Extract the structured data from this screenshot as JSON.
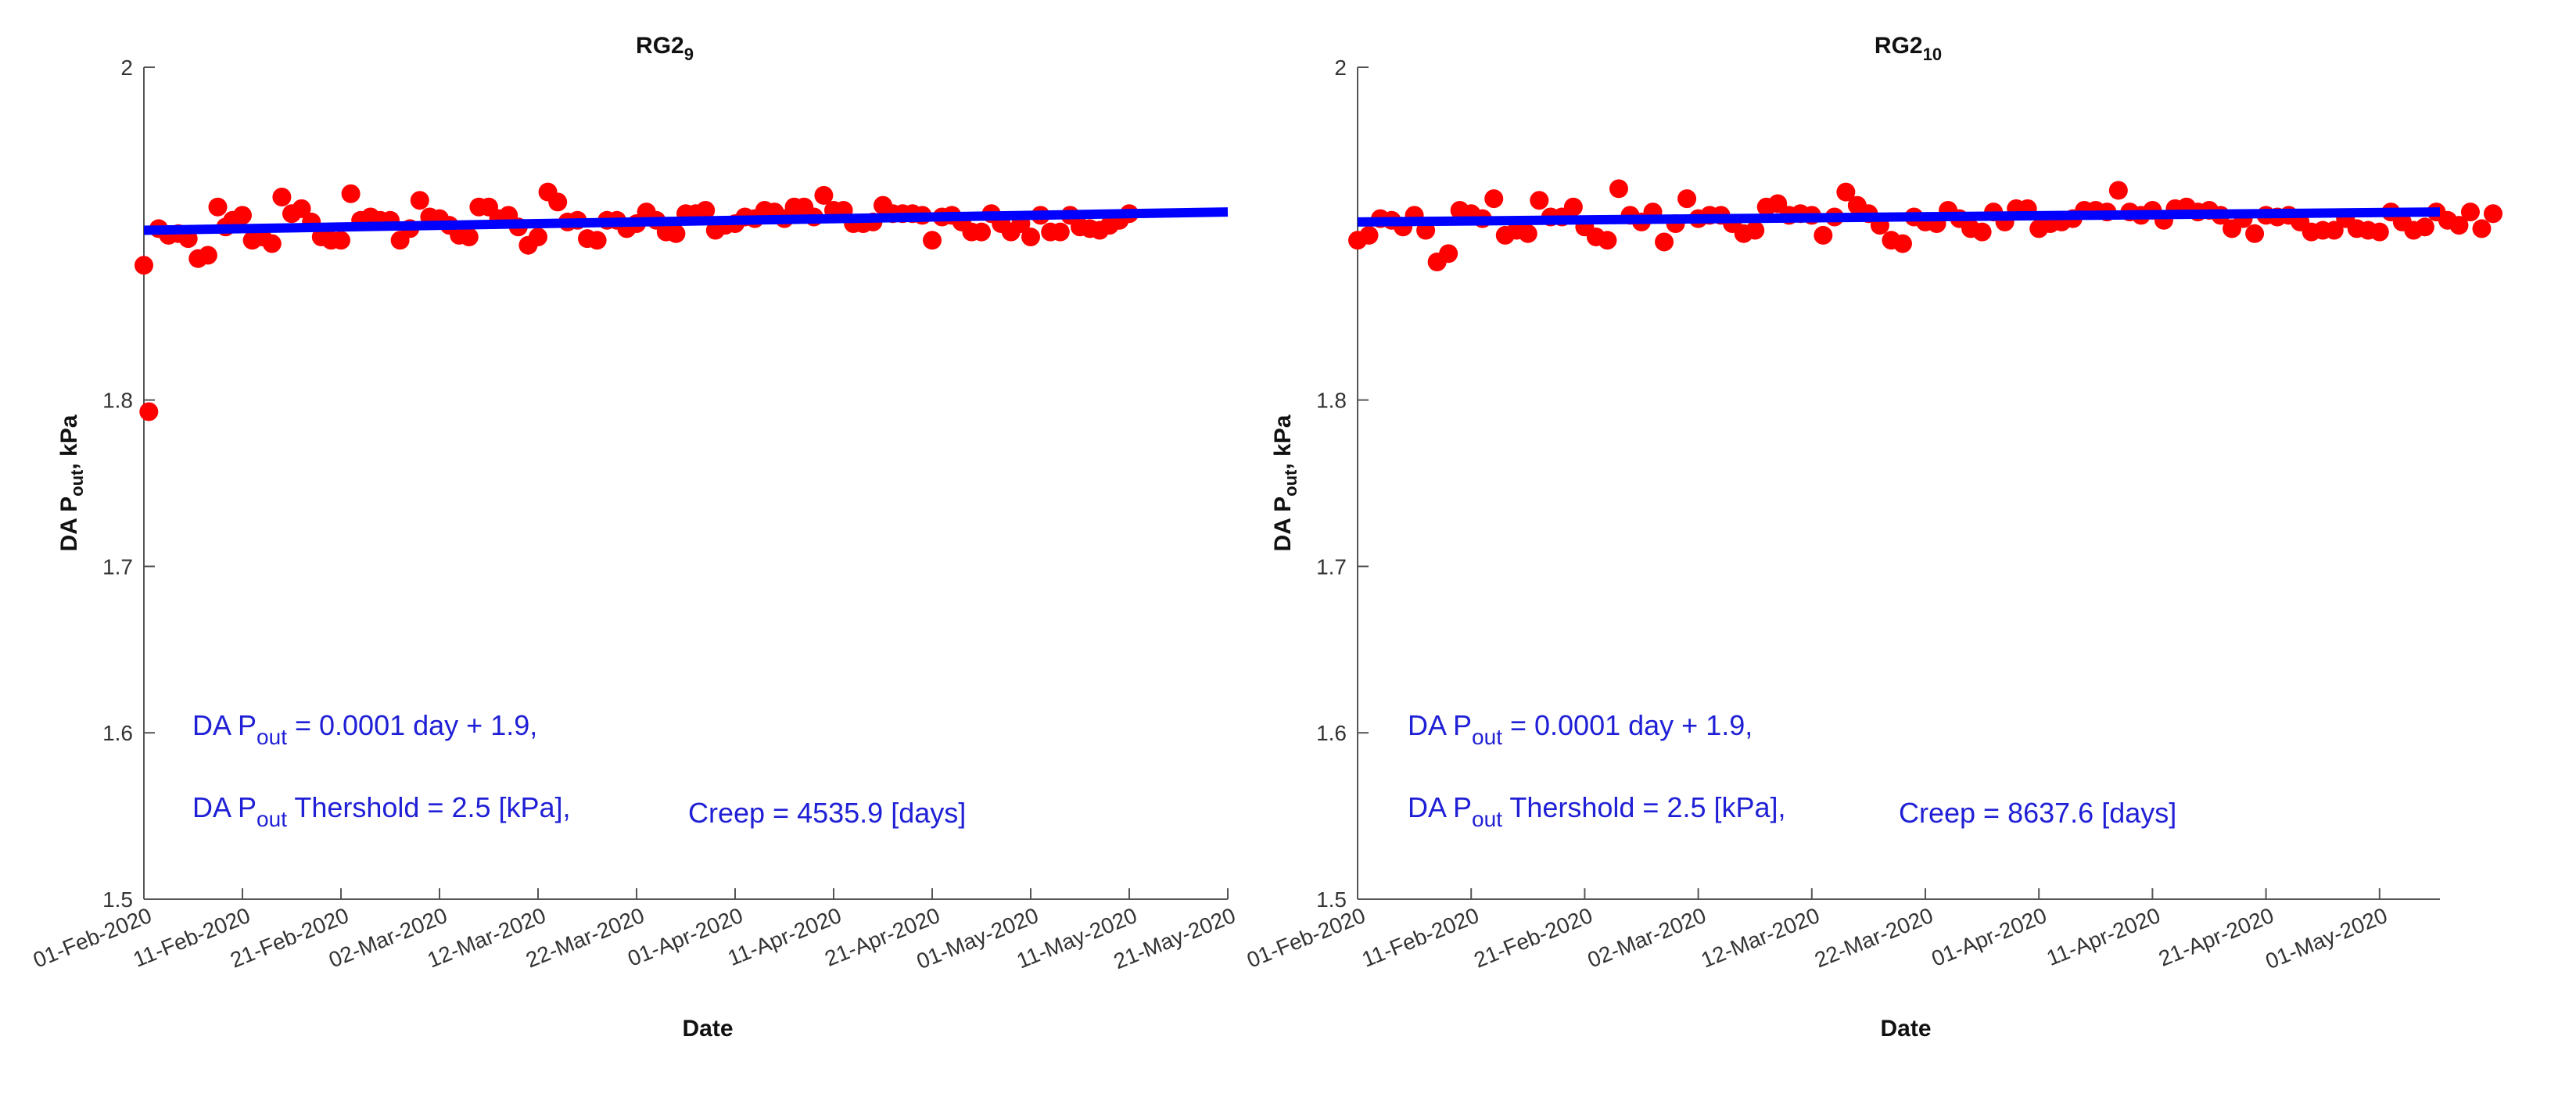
{
  "colors": {
    "points": "#ff0000",
    "fit_line": "#0000ff",
    "annotation": "#1f1fd6",
    "axes": "#555555"
  },
  "chart_data": [
    {
      "type": "scatter",
      "title": "RG2",
      "title_subscript": "9",
      "xlabel": "Date",
      "ylabel": "DA P",
      "ylabel_subscript": "out",
      "ylabel_suffix": ", kPa",
      "ylim": [
        1.5,
        2.0
      ],
      "y_ticks": [
        "1.5",
        "1.6",
        "1.7",
        "1.8",
        "2"
      ],
      "xlim_days": [
        0,
        110
      ],
      "x_ticks": [
        {
          "day": 0,
          "label": "01-Feb-2020"
        },
        {
          "day": 10,
          "label": "11-Feb-2020"
        },
        {
          "day": 20,
          "label": "21-Feb-2020"
        },
        {
          "day": 30,
          "label": "02-Mar-2020"
        },
        {
          "day": 40,
          "label": "12-Mar-2020"
        },
        {
          "day": 50,
          "label": "22-Mar-2020"
        },
        {
          "day": 60,
          "label": "01-Apr-2020"
        },
        {
          "day": 70,
          "label": "11-Apr-2020"
        },
        {
          "day": 80,
          "label": "21-Apr-2020"
        },
        {
          "day": 90,
          "label": "01-May-2020"
        },
        {
          "day": 100,
          "label": "11-May-2020"
        },
        {
          "day": 110,
          "label": "21-May-2020"
        }
      ],
      "fit": {
        "slope": 0.0001,
        "intercept": 1.9,
        "y_start": 1.902,
        "y_end": 1.913
      },
      "annotations": {
        "eq1_prefix": "DA P",
        "eq1_sub": "out",
        "eq1_rest": " = 0.0001 day + 1.9,",
        "eq2_prefix": "DA P",
        "eq2_sub": "out",
        "eq2_rest": " Thershold = 2.5 [kPa],",
        "creep": "Creep = 4535.9 [days]"
      },
      "points": [
        [
          0,
          1.881
        ],
        [
          0.5,
          1.793
        ],
        [
          1.5,
          1.903
        ],
        [
          2.5,
          1.899
        ],
        [
          3.5,
          1.9
        ],
        [
          4.5,
          1.897
        ],
        [
          5.5,
          1.885
        ],
        [
          6.5,
          1.887
        ],
        [
          7.5,
          1.916
        ],
        [
          8.3,
          1.904
        ],
        [
          9,
          1.908
        ],
        [
          10,
          1.911
        ],
        [
          11,
          1.896
        ],
        [
          12,
          1.898
        ],
        [
          13,
          1.894
        ],
        [
          14,
          1.922
        ],
        [
          15,
          1.912
        ],
        [
          16,
          1.915
        ],
        [
          17,
          1.907
        ],
        [
          18,
          1.898
        ],
        [
          19,
          1.896
        ],
        [
          20,
          1.896
        ],
        [
          21,
          1.924
        ],
        [
          22,
          1.908
        ],
        [
          23,
          1.91
        ],
        [
          24,
          1.908
        ],
        [
          25,
          1.908
        ],
        [
          26,
          1.896
        ],
        [
          27,
          1.903
        ],
        [
          28,
          1.92
        ],
        [
          29,
          1.91
        ],
        [
          30,
          1.909
        ],
        [
          31,
          1.905
        ],
        [
          32,
          1.899
        ],
        [
          33,
          1.898
        ],
        [
          34,
          1.916
        ],
        [
          35,
          1.916
        ],
        [
          36,
          1.909
        ],
        [
          37,
          1.911
        ],
        [
          38,
          1.904
        ],
        [
          39,
          1.893
        ],
        [
          40,
          1.898
        ],
        [
          41,
          1.925
        ],
        [
          42,
          1.919
        ],
        [
          43,
          1.907
        ],
        [
          44,
          1.908
        ],
        [
          45,
          1.897
        ],
        [
          46,
          1.896
        ],
        [
          47,
          1.908
        ],
        [
          48,
          1.908
        ],
        [
          49,
          1.903
        ],
        [
          50,
          1.906
        ],
        [
          51,
          1.913
        ],
        [
          52,
          1.908
        ],
        [
          53,
          1.901
        ],
        [
          54,
          1.9
        ],
        [
          55,
          1.912
        ],
        [
          56,
          1.912
        ],
        [
          57,
          1.914
        ],
        [
          58,
          1.902
        ],
        [
          59,
          1.905
        ],
        [
          60,
          1.906
        ],
        [
          61,
          1.91
        ],
        [
          62,
          1.909
        ],
        [
          63,
          1.914
        ],
        [
          64,
          1.913
        ],
        [
          65,
          1.909
        ],
        [
          66,
          1.916
        ],
        [
          67,
          1.916
        ],
        [
          68,
          1.91
        ],
        [
          69,
          1.923
        ],
        [
          70,
          1.914
        ],
        [
          71,
          1.914
        ],
        [
          72,
          1.906
        ],
        [
          73,
          1.906
        ],
        [
          74,
          1.907
        ],
        [
          75,
          1.917
        ],
        [
          76,
          1.912
        ],
        [
          77,
          1.912
        ],
        [
          78,
          1.912
        ],
        [
          79,
          1.911
        ],
        [
          80,
          1.896
        ],
        [
          81,
          1.91
        ],
        [
          82,
          1.911
        ],
        [
          83,
          1.907
        ],
        [
          84,
          1.901
        ],
        [
          85,
          1.901
        ],
        [
          86,
          1.912
        ],
        [
          87,
          1.906
        ],
        [
          88,
          1.901
        ],
        [
          89,
          1.906
        ],
        [
          90,
          1.898
        ],
        [
          91,
          1.911
        ],
        [
          92,
          1.901
        ],
        [
          93,
          1.901
        ],
        [
          94,
          1.911
        ],
        [
          95,
          1.904
        ],
        [
          96,
          1.903
        ],
        [
          97,
          1.902
        ],
        [
          98,
          1.905
        ],
        [
          99,
          1.908
        ],
        [
          100,
          1.912
        ]
      ]
    },
    {
      "type": "scatter",
      "title": "RG2",
      "title_subscript": "10",
      "xlabel": "Date",
      "ylabel": "DA P",
      "ylabel_subscript": "out",
      "ylabel_suffix": ", kPa",
      "ylim": [
        1.5,
        2.0
      ],
      "y_ticks": [
        "1.5",
        "1.6",
        "1.7",
        "1.8",
        "2"
      ],
      "xlim_days": [
        0,
        100
      ],
      "x_ticks": [
        {
          "day": 0,
          "label": "01-Feb-2020"
        },
        {
          "day": 10,
          "label": "11-Feb-2020"
        },
        {
          "day": 20,
          "label": "21-Feb-2020"
        },
        {
          "day": 30,
          "label": "02-Mar-2020"
        },
        {
          "day": 40,
          "label": "12-Mar-2020"
        },
        {
          "day": 50,
          "label": "22-Mar-2020"
        },
        {
          "day": 60,
          "label": "01-Apr-2020"
        },
        {
          "day": 70,
          "label": "11-Apr-2020"
        },
        {
          "day": 80,
          "label": "21-Apr-2020"
        },
        {
          "day": 90,
          "label": "01-May-2020"
        }
      ],
      "fit": {
        "slope": 0.0001,
        "intercept": 1.9,
        "y_start": 1.907,
        "y_end": 1.913
      },
      "annotations": {
        "eq1_prefix": "DA P",
        "eq1_sub": "out",
        "eq1_rest": " = 0.0001 day + 1.9,",
        "eq2_prefix": "DA P",
        "eq2_sub": "out",
        "eq2_rest": " Thershold = 2.5 [kPa],",
        "creep": "Creep = 8637.6 [days]"
      },
      "points": [
        [
          0,
          1.896
        ],
        [
          1,
          1.899
        ],
        [
          2,
          1.909
        ],
        [
          3,
          1.908
        ],
        [
          4,
          1.904
        ],
        [
          5,
          1.911
        ],
        [
          6,
          1.902
        ],
        [
          7,
          1.883
        ],
        [
          8,
          1.888
        ],
        [
          9,
          1.914
        ],
        [
          10,
          1.912
        ],
        [
          11,
          1.909
        ],
        [
          12,
          1.921
        ],
        [
          13,
          1.899
        ],
        [
          14,
          1.902
        ],
        [
          15,
          1.9
        ],
        [
          16,
          1.92
        ],
        [
          17,
          1.91
        ],
        [
          18,
          1.91
        ],
        [
          19,
          1.916
        ],
        [
          20,
          1.904
        ],
        [
          21,
          1.898
        ],
        [
          22,
          1.896
        ],
        [
          23,
          1.927
        ],
        [
          24,
          1.911
        ],
        [
          25,
          1.907
        ],
        [
          26,
          1.913
        ],
        [
          27,
          1.895
        ],
        [
          28,
          1.906
        ],
        [
          29,
          1.921
        ],
        [
          30,
          1.909
        ],
        [
          31,
          1.911
        ],
        [
          32,
          1.911
        ],
        [
          33,
          1.906
        ],
        [
          34,
          1.9
        ],
        [
          35,
          1.902
        ],
        [
          36,
          1.916
        ],
        [
          37,
          1.918
        ],
        [
          38,
          1.911
        ],
        [
          39,
          1.912
        ],
        [
          40,
          1.911
        ],
        [
          41,
          1.899
        ],
        [
          42,
          1.91
        ],
        [
          43,
          1.925
        ],
        [
          44,
          1.917
        ],
        [
          45,
          1.912
        ],
        [
          46,
          1.905
        ],
        [
          47,
          1.896
        ],
        [
          48,
          1.894
        ],
        [
          49,
          1.91
        ],
        [
          50,
          1.907
        ],
        [
          51,
          1.906
        ],
        [
          52,
          1.914
        ],
        [
          53,
          1.909
        ],
        [
          54,
          1.903
        ],
        [
          55,
          1.901
        ],
        [
          56,
          1.913
        ],
        [
          57,
          1.907
        ],
        [
          58,
          1.915
        ],
        [
          59,
          1.915
        ],
        [
          60,
          1.903
        ],
        [
          61,
          1.906
        ],
        [
          62,
          1.907
        ],
        [
          63,
          1.909
        ],
        [
          64,
          1.914
        ],
        [
          65,
          1.914
        ],
        [
          66,
          1.913
        ],
        [
          67,
          1.926
        ],
        [
          68,
          1.913
        ],
        [
          69,
          1.911
        ],
        [
          70,
          1.914
        ],
        [
          71,
          1.908
        ],
        [
          72,
          1.915
        ],
        [
          73,
          1.916
        ],
        [
          74,
          1.913
        ],
        [
          75,
          1.914
        ],
        [
          76,
          1.911
        ],
        [
          77,
          1.903
        ],
        [
          78,
          1.909
        ],
        [
          79,
          1.9
        ],
        [
          80,
          1.911
        ],
        [
          81,
          1.91
        ],
        [
          82,
          1.911
        ],
        [
          83,
          1.907
        ],
        [
          84,
          1.901
        ],
        [
          85,
          1.902
        ],
        [
          86,
          1.902
        ],
        [
          87,
          1.909
        ],
        [
          88,
          1.903
        ],
        [
          89,
          1.902
        ],
        [
          90,
          1.901
        ],
        [
          91,
          1.913
        ],
        [
          92,
          1.907
        ],
        [
          93,
          1.902
        ],
        [
          94,
          1.904
        ],
        [
          95,
          1.913
        ],
        [
          96,
          1.908
        ],
        [
          97,
          1.905
        ],
        [
          98,
          1.913
        ],
        [
          99,
          1.903
        ],
        [
          100,
          1.912
        ]
      ]
    }
  ]
}
